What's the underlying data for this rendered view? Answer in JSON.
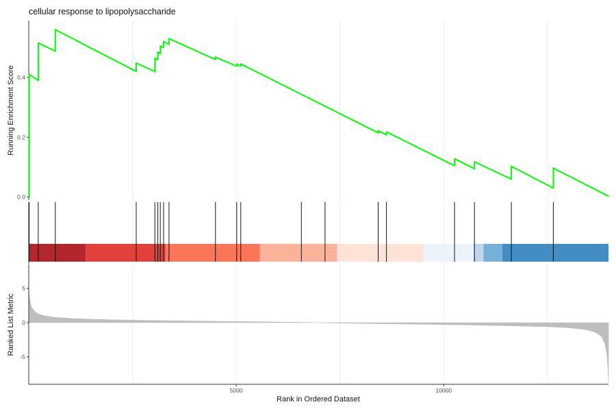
{
  "chart_data": {
    "type": "line",
    "title": "cellular response to lipopolysaccharide",
    "xlabel": "Rank in Ordered Dataset",
    "xlim": [
      0,
      13970
    ],
    "x_ticks": [
      5000,
      10000
    ],
    "x_tick_labels": [
      "5000",
      "10000"
    ],
    "x_gridlines": [
      2500,
      5000,
      7500,
      10000,
      12500
    ],
    "grid": true,
    "panels": {
      "enrichment": {
        "ylabel": "Running Enrichment Score",
        "ylim": [
          -0.01,
          0.59
        ],
        "y_ticks": [
          0.0,
          0.2,
          0.4
        ],
        "y_tick_labels": [
          "0.0",
          "0.2",
          "0.4"
        ],
        "line_color": "#00ff00",
        "series": [
          {
            "x": [
              0,
              10,
              10,
              230,
              230,
              640,
              640,
              2590,
              2590,
              3040,
              3040,
              3110,
              3110,
              3170,
              3170,
              3250,
              3250,
              3350,
              3350,
              3380,
              3380,
              4500,
              4500,
              5010,
              5010,
              5110,
              5110,
              8420,
              8420,
              8620,
              8620,
              10260,
              10260,
              10740,
              10740,
              11630,
              11630,
              12640,
              12640,
              13970
            ],
            "y": [
              0.0,
              0.0,
              0.41,
              0.39,
              0.515,
              0.488,
              0.56,
              0.42,
              0.448,
              0.42,
              0.465,
              0.46,
              0.485,
              0.48,
              0.505,
              0.5,
              0.52,
              0.513,
              0.513,
              0.51,
              0.53,
              0.46,
              0.468,
              0.438,
              0.445,
              0.438,
              0.445,
              0.215,
              0.222,
              0.208,
              0.218,
              0.105,
              0.128,
              0.095,
              0.118,
              0.06,
              0.103,
              0.03,
              0.097,
              0.003
            ]
          }
        ]
      },
      "hits": {
        "positions": [
          10,
          230,
          640,
          2590,
          3040,
          3110,
          3170,
          3250,
          3380,
          4500,
          5010,
          5110,
          6570,
          7140,
          8420,
          8620,
          10260,
          10740,
          11630,
          12640
        ],
        "color_bands": [
          {
            "start": 0,
            "end": 1370,
            "color": "#b2272b"
          },
          {
            "start": 1370,
            "end": 3290,
            "color": "#e2403b"
          },
          {
            "start": 3290,
            "end": 5570,
            "color": "#fb7559"
          },
          {
            "start": 5570,
            "end": 7430,
            "color": "#fcb39a"
          },
          {
            "start": 7430,
            "end": 9510,
            "color": "#fde2d8"
          },
          {
            "start": 9510,
            "end": 10720,
            "color": "#edf3fb"
          },
          {
            "start": 10720,
            "end": 10960,
            "color": "#bdd6ea"
          },
          {
            "start": 10960,
            "end": 11410,
            "color": "#77b0d8"
          },
          {
            "start": 11410,
            "end": 13970,
            "color": "#428dc3"
          }
        ]
      },
      "ranked_metric": {
        "ylabel": "Ranked List Metric",
        "ylim": [
          -9,
          8.5
        ],
        "y_ticks": [
          -5,
          0,
          5
        ],
        "y_tick_labels": [
          "-5",
          "0",
          "5"
        ],
        "fill_color": "#bebebe",
        "profile": {
          "x": [
            0,
            20,
            60,
            120,
            200,
            350,
            600,
            1000,
            1500,
            2500,
            3500,
            4500,
            5500,
            6500,
            6990,
            7500,
            8500,
            9500,
            10500,
            11500,
            12500,
            13000,
            13400,
            13650,
            13800,
            13880,
            13930,
            13955,
            13970
          ],
          "y": [
            5.2,
            3.6,
            2.4,
            1.8,
            1.35,
            1.05,
            0.8,
            0.62,
            0.5,
            0.36,
            0.27,
            0.2,
            0.13,
            0.06,
            0.0,
            -0.07,
            -0.16,
            -0.24,
            -0.33,
            -0.45,
            -0.6,
            -0.75,
            -1.0,
            -1.4,
            -2.0,
            -3.0,
            -4.6,
            -6.5,
            -8.8
          ]
        }
      }
    }
  }
}
